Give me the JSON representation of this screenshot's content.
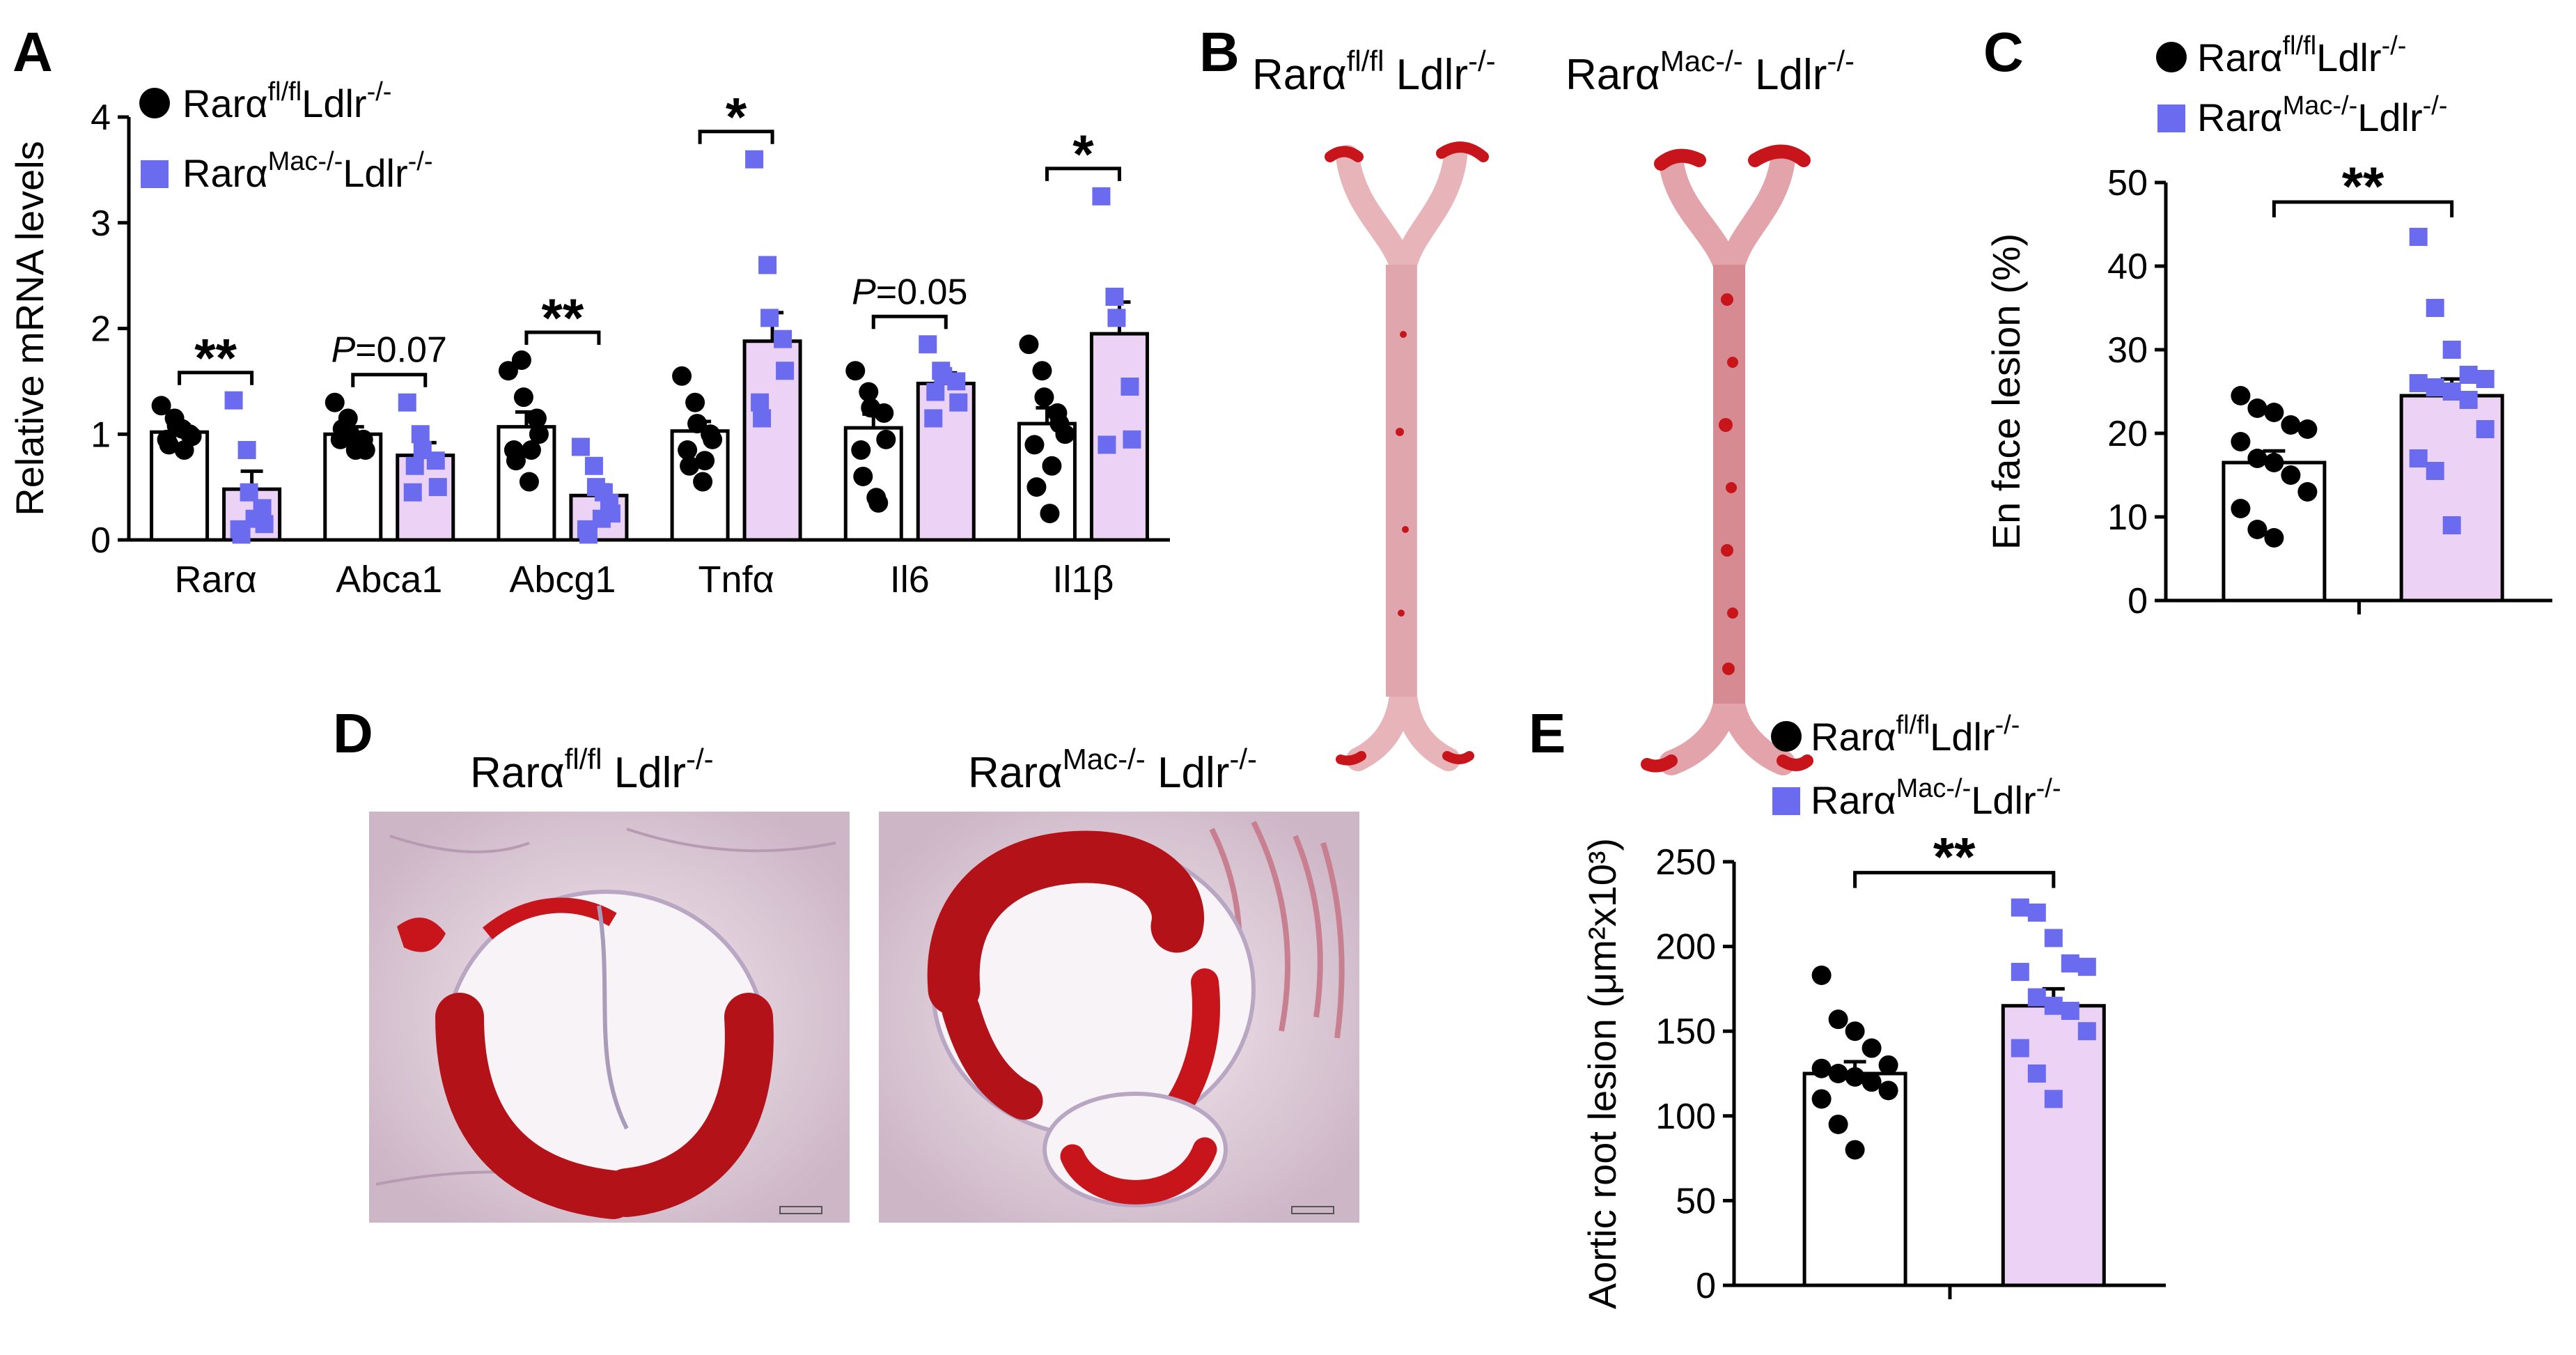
{
  "colors": {
    "control": "#000000",
    "mac": "#6b6bf0",
    "mac_bar": "#ecd3f5",
    "tissue_red": "#c8151c",
    "tissue_pale": "#d8a4aa"
  },
  "panels": {
    "A": {
      "letter": "A",
      "legend": [
        {
          "base": "Rarα",
          "sup": "fl/fl",
          "rest": "Ldlr",
          "sup2": "-/-",
          "marker": "circle"
        },
        {
          "base": "Rarα",
          "sup": "Mac-/-",
          "rest": "Ldlr",
          "sup2": "-/-",
          "marker": "square"
        }
      ]
    },
    "B": {
      "letter": "B",
      "labels": [
        {
          "base": "Rarα",
          "sup": "fl/fl",
          "rest": " Ldlr",
          "sup2": "-/-"
        },
        {
          "base": "Rarα",
          "sup": "Mac-/-",
          "rest": " Ldlr",
          "sup2": "-/-"
        }
      ]
    },
    "C": {
      "letter": "C",
      "legend": [
        {
          "base": "Rarα",
          "sup": "fl/fl",
          "rest": "Ldlr",
          "sup2": "-/-",
          "marker": "circle"
        },
        {
          "base": "Rarα",
          "sup": "Mac-/-",
          "rest": "Ldlr",
          "sup2": "-/-",
          "marker": "square"
        }
      ]
    },
    "D": {
      "letter": "D",
      "labels": [
        {
          "base": "Rarα",
          "sup": "fl/fl",
          "rest": " Ldlr",
          "sup2": "-/-"
        },
        {
          "base": "Rarα",
          "sup": "Mac-/-",
          "rest": " Ldlr",
          "sup2": "-/-"
        }
      ]
    },
    "E": {
      "letter": "E",
      "legend": [
        {
          "base": "Rarα",
          "sup": "fl/fl",
          "rest": "Ldlr",
          "sup2": "-/-",
          "marker": "circle"
        },
        {
          "base": "Rarα",
          "sup": "Mac-/-",
          "rest": "Ldlr",
          "sup2": "-/-",
          "marker": "square"
        }
      ]
    }
  },
  "chart_data": [
    {
      "id": "A",
      "type": "bar",
      "ylabel": "Relative mRNA levels",
      "ylim": [
        0,
        4
      ],
      "yticks": [
        0,
        1,
        2,
        3,
        4
      ],
      "categories": [
        "Rarα",
        "Abca1",
        "Abcg1",
        "Tnfα",
        "Il6",
        "Il1β"
      ],
      "series": [
        {
          "values": [
            1.02,
            1.0,
            1.07,
            1.03,
            1.06,
            1.1
          ],
          "sem": [
            0.07,
            0.07,
            0.14,
            0.09,
            0.13,
            0.15
          ],
          "points": [
            [
              1.27,
              1.15,
              1.08,
              1.0,
              0.98,
              0.95,
              0.9,
              1.05,
              0.85
            ],
            [
              1.3,
              1.15,
              1.0,
              0.95,
              0.85,
              0.95,
              1.05,
              0.85
            ],
            [
              1.6,
              1.7,
              1.35,
              1.15,
              1.0,
              0.85,
              0.75,
              0.55,
              0.85
            ],
            [
              1.55,
              1.3,
              1.1,
              1.0,
              0.95,
              0.85,
              0.7,
              0.55,
              0.75
            ],
            [
              1.6,
              1.4,
              1.25,
              1.2,
              0.95,
              0.85,
              0.6,
              0.4,
              0.35
            ],
            [
              1.85,
              1.6,
              1.35,
              1.2,
              1.1,
              0.9,
              0.5,
              0.25,
              0.7,
              1.0
            ]
          ]
        },
        {
          "values": [
            0.48,
            0.8,
            0.42,
            1.88,
            1.48,
            1.95
          ],
          "sem": [
            0.17,
            0.12,
            0.1,
            0.27,
            0.1,
            0.3
          ],
          "points": [
            [
              1.32,
              0.85,
              0.45,
              0.3,
              0.15,
              0.1,
              0.05,
              0.2
            ],
            [
              1.3,
              1.0,
              0.85,
              0.75,
              0.5,
              0.45,
              0.7
            ],
            [
              0.88,
              0.7,
              0.5,
              0.35,
              0.25,
              0.1,
              0.05,
              0.2,
              0.45
            ],
            [
              3.6,
              2.6,
              2.1,
              1.9,
              1.6,
              1.3,
              1.15
            ],
            [
              1.85,
              1.6,
              1.55,
              1.5,
              1.3,
              1.15,
              1.4
            ],
            [
              3.25,
              2.3,
              2.1,
              1.45,
              0.95,
              0.9
            ]
          ]
        }
      ],
      "annotations": [
        {
          "pair": 0,
          "text": "**"
        },
        {
          "pair": 1,
          "text": "=0.07",
          "prefix": "P"
        },
        {
          "pair": 2,
          "text": "**"
        },
        {
          "pair": 3,
          "text": "*"
        },
        {
          "pair": 4,
          "text": "=0.05",
          "prefix": "P"
        },
        {
          "pair": 5,
          "text": "*"
        }
      ]
    },
    {
      "id": "C",
      "type": "bar",
      "ylabel": "En face lesion (%)",
      "ylim": [
        0,
        50
      ],
      "yticks": [
        0,
        10,
        20,
        30,
        40,
        50
      ],
      "series": [
        {
          "value": 16.5,
          "sem": 1.4,
          "points": [
            24.5,
            23,
            22.5,
            21,
            20.5,
            19,
            17,
            16.5,
            15,
            13,
            11,
            8.5,
            7.5
          ]
        },
        {
          "value": 24.5,
          "sem": 2.0,
          "points": [
            43.5,
            35,
            30,
            27,
            26.5,
            26,
            25.5,
            25,
            24,
            20.5,
            17,
            15.5,
            9
          ]
        }
      ],
      "annotation": "**"
    },
    {
      "id": "E",
      "type": "bar",
      "ylabel": "Aortic root lesion (μm²x10³)",
      "ylim": [
        0,
        250
      ],
      "yticks": [
        0,
        50,
        100,
        150,
        200,
        250
      ],
      "series": [
        {
          "value": 125,
          "sem": 7,
          "points": [
            183,
            157,
            150,
            140,
            130,
            128,
            125,
            123,
            120,
            115,
            110,
            95,
            80
          ]
        },
        {
          "value": 165,
          "sem": 10,
          "points": [
            223,
            220,
            205,
            190,
            188,
            185,
            170,
            165,
            162,
            150,
            140,
            125,
            110
          ]
        }
      ],
      "annotation": "**"
    }
  ]
}
